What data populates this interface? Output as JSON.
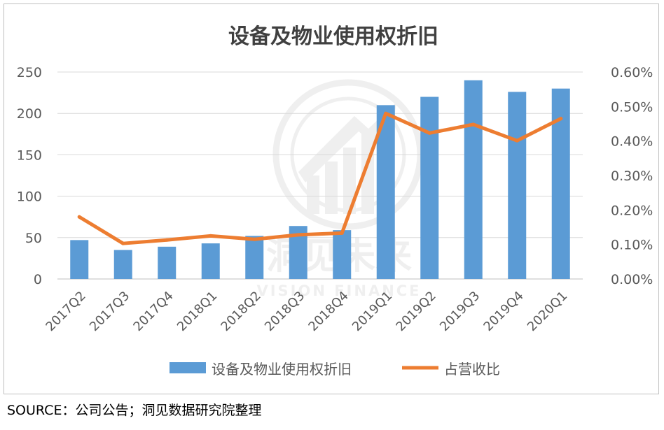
{
  "chart_data": {
    "type": "bar",
    "title": "设备及物业使用权折旧",
    "categories": [
      "2017Q2",
      "2017Q3",
      "2017Q4",
      "2018Q1",
      "2018Q2",
      "2018Q3",
      "2018Q4",
      "2019Q1",
      "2019Q2",
      "2019Q3",
      "2019Q4",
      "2020Q1"
    ],
    "series": [
      {
        "name": "设备及物业使用权折旧",
        "type": "bar",
        "axis": "left",
        "color": "#5b9bd5",
        "values": [
          47,
          35,
          39,
          43,
          52,
          64,
          59,
          210,
          220,
          240,
          226,
          230
        ]
      },
      {
        "name": "占营收比",
        "type": "line",
        "axis": "right",
        "color": "#ed7d31",
        "values": [
          0.18,
          0.103,
          0.113,
          0.125,
          0.115,
          0.128,
          0.133,
          0.48,
          0.423,
          0.448,
          0.401,
          0.465
        ]
      }
    ],
    "y_left": {
      "min": 0,
      "max": 250,
      "ticks": [
        "0",
        "50",
        "100",
        "150",
        "200",
        "250"
      ]
    },
    "y_right": {
      "min": 0,
      "max": 0.6,
      "ticks": [
        "0.00%",
        "0.10%",
        "0.20%",
        "0.30%",
        "0.40%",
        "0.50%",
        "0.60%"
      ]
    },
    "xlabel": "",
    "ylabel": "",
    "grid": true,
    "legend_position": "bottom"
  },
  "watermark": {
    "cn": "洞见未来",
    "en": "VISION FINANCE"
  },
  "source_note": "SOURCE：公司公告；洞见数据研究院整理"
}
